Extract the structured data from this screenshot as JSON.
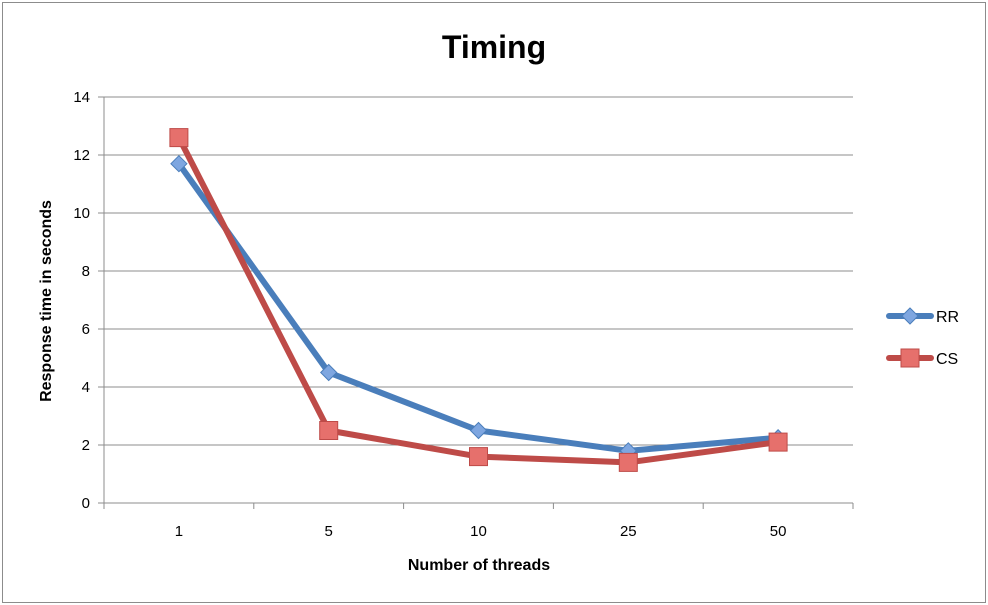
{
  "chart_data": {
    "type": "line",
    "title": "Timing",
    "xlabel": "Number of threads",
    "ylabel": "Response time in seconds",
    "categories": [
      "1",
      "5",
      "10",
      "25",
      "50"
    ],
    "ylim": [
      0,
      14
    ],
    "yticks": [
      "0",
      "2",
      "4",
      "6",
      "8",
      "10",
      "12",
      "14"
    ],
    "grid": true,
    "legend_position": "right",
    "series": [
      {
        "name": "RR",
        "values": [
          11.7,
          4.5,
          2.5,
          1.8,
          2.25
        ],
        "color": "#4a7ebb",
        "marker_color": "#7ea6e0",
        "marker": "diamond"
      },
      {
        "name": "CS",
        "values": [
          12.6,
          2.5,
          1.6,
          1.4,
          2.1
        ],
        "color": "#be4b48",
        "marker_color": "#e6706c",
        "marker": "square"
      }
    ]
  }
}
